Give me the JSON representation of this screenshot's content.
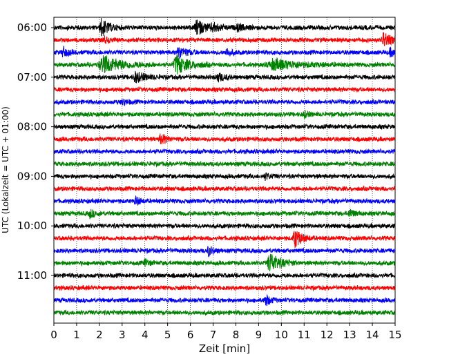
{
  "chart_data": {
    "type": "line",
    "xlabel": "Zeit  [min]",
    "ylabel": "UTC (Lokalzeit = UTC + 01:00)",
    "xlim": [
      0,
      15
    ],
    "x_ticks": [
      "0",
      "1",
      "2",
      "3",
      "4",
      "5",
      "6",
      "7",
      "8",
      "9",
      "10",
      "11",
      "12",
      "13",
      "14",
      "15"
    ],
    "y_ticks": [
      "06:00",
      "07:00",
      "08:00",
      "09:00",
      "10:00",
      "11:00"
    ],
    "traces_start": "06:00",
    "trace_interval_min": 15,
    "trace_count": 24,
    "trace_colors": [
      "#000000",
      "#ff0000",
      "#0000ff",
      "#008000"
    ],
    "grid": "vertical dotted",
    "events": [
      {
        "trace": 0,
        "t": 2.1,
        "amp": 0.9,
        "w": 0.3
      },
      {
        "trace": 0,
        "t": 6.3,
        "amp": 0.7,
        "w": 0.4
      },
      {
        "trace": 0,
        "t": 7.0,
        "amp": 0.3,
        "w": 0.4
      },
      {
        "trace": 0,
        "t": 8.1,
        "amp": 0.3,
        "w": 0.3
      },
      {
        "trace": 1,
        "t": 14.5,
        "amp": 0.7,
        "w": 0.3
      },
      {
        "trace": 1,
        "t": 2.2,
        "amp": 0.3,
        "w": 0.2
      },
      {
        "trace": 2,
        "t": 0.4,
        "amp": 0.5,
        "w": 0.2
      },
      {
        "trace": 2,
        "t": 5.5,
        "amp": 0.6,
        "w": 0.3
      },
      {
        "trace": 2,
        "t": 7.6,
        "amp": 0.4,
        "w": 0.2
      },
      {
        "trace": 2,
        "t": 14.8,
        "amp": 0.4,
        "w": 0.2
      },
      {
        "trace": 3,
        "t": 2.2,
        "amp": 0.8,
        "w": 0.8
      },
      {
        "trace": 3,
        "t": 5.4,
        "amp": 0.9,
        "w": 0.5
      },
      {
        "trace": 3,
        "t": 9.7,
        "amp": 0.5,
        "w": 1.0
      },
      {
        "trace": 4,
        "t": 3.6,
        "amp": 0.5,
        "w": 0.4
      },
      {
        "trace": 4,
        "t": 7.2,
        "amp": 0.4,
        "w": 0.3
      },
      {
        "trace": 6,
        "t": 3.0,
        "amp": 0.3,
        "w": 0.2
      },
      {
        "trace": 7,
        "t": 11.0,
        "amp": 0.3,
        "w": 0.2
      },
      {
        "trace": 9,
        "t": 4.7,
        "amp": 0.6,
        "w": 0.2
      },
      {
        "trace": 12,
        "t": 9.3,
        "amp": 0.3,
        "w": 0.2
      },
      {
        "trace": 14,
        "t": 3.6,
        "amp": 0.4,
        "w": 0.2
      },
      {
        "trace": 15,
        "t": 1.6,
        "amp": 0.4,
        "w": 0.2
      },
      {
        "trace": 15,
        "t": 13.0,
        "amp": 0.4,
        "w": 0.2
      },
      {
        "trace": 17,
        "t": 10.6,
        "amp": 0.9,
        "w": 0.3
      },
      {
        "trace": 18,
        "t": 6.8,
        "amp": 0.5,
        "w": 0.2
      },
      {
        "trace": 19,
        "t": 9.5,
        "amp": 1.0,
        "w": 0.4
      },
      {
        "trace": 19,
        "t": 4.0,
        "amp": 0.3,
        "w": 0.2
      },
      {
        "trace": 22,
        "t": 9.3,
        "amp": 0.6,
        "w": 0.2
      }
    ]
  }
}
